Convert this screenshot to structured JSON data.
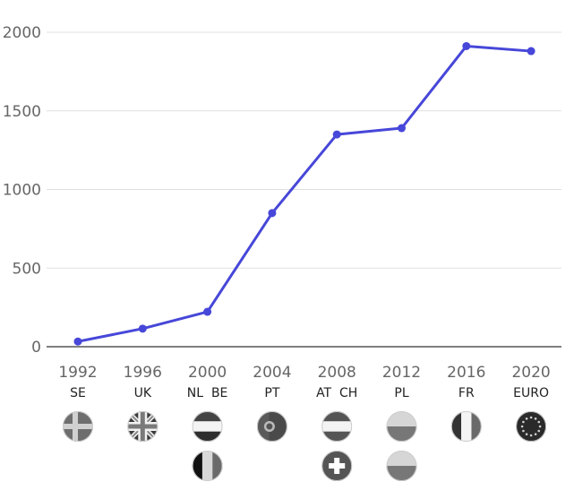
{
  "chart_data": {
    "type": "line",
    "title": "",
    "xlabel": "",
    "ylabel": "",
    "ylim": [
      0,
      2000
    ],
    "yticks": [
      "0",
      "500",
      "1000",
      "1500",
      "2000"
    ],
    "grid": true,
    "legend": "none",
    "line_color": "#4747d9",
    "grid_color": "#e0e0e0",
    "axis_color": "#333333",
    "categories": [
      "1992",
      "1996",
      "2000",
      "2004",
      "2008",
      "2012",
      "2016",
      "2020"
    ],
    "hosts": [
      "SE",
      "UK",
      "NL  BE",
      "PT",
      "AT  CH",
      "PL",
      "FR",
      "EURO"
    ],
    "values": [
      33,
      115,
      222,
      850,
      1350,
      1390,
      1912,
      1880
    ],
    "flags": [
      [
        "sweden-flag-icon"
      ],
      [
        "uk-flag-icon"
      ],
      [
        "netherlands-flag-icon",
        "belgium-flag-icon"
      ],
      [
        "portugal-flag-icon"
      ],
      [
        "austria-flag-icon",
        "switzerland-flag-icon"
      ],
      [
        "poland-flag-icon",
        "poland-flag-icon"
      ],
      [
        "france-flag-icon"
      ],
      [
        "eu-flag-icon"
      ]
    ]
  }
}
